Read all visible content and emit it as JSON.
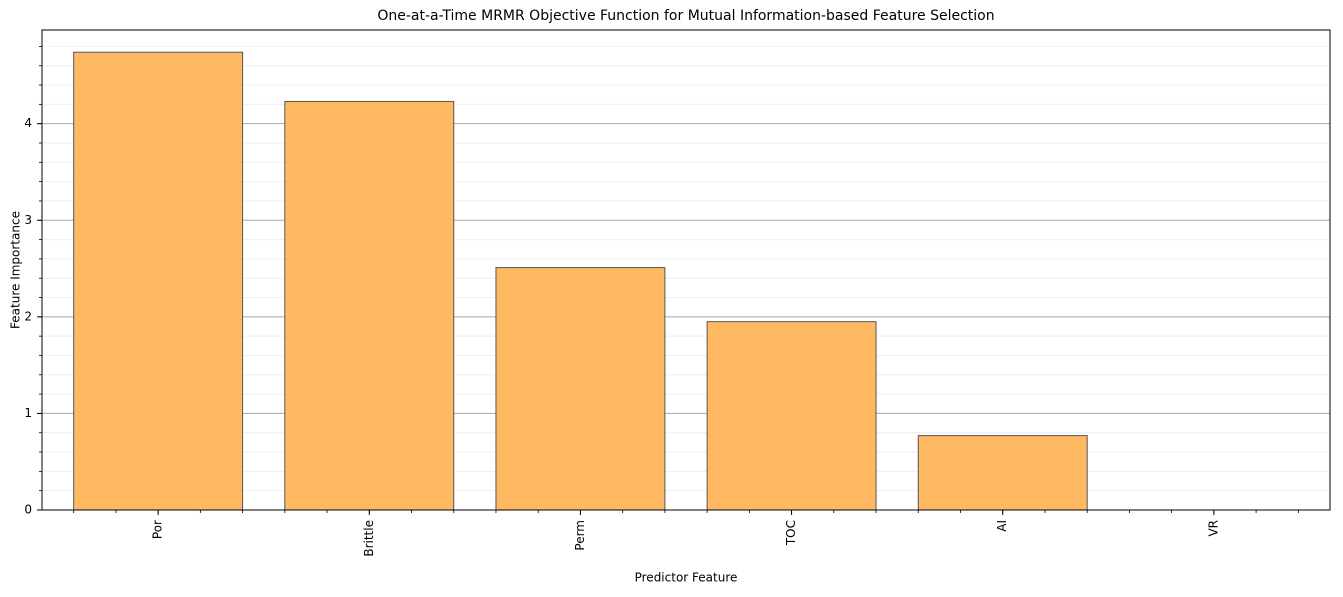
{
  "chart_data": {
    "type": "bar",
    "title": "One-at-a-Time MRMR Objective Function for Mutual Information-based Feature Selection",
    "x_label": "Predictor Feature",
    "y_label": "Feature Importance",
    "categories": [
      "Por",
      "Brittle",
      "Perm",
      "TOC",
      "AI",
      "VR"
    ],
    "values": [
      4.74,
      4.23,
      2.51,
      1.95,
      0.77,
      0.0
    ],
    "color": "#ffb963",
    "edge_color": "#555555",
    "ylim": [
      0,
      4.97
    ],
    "yticks": [
      0,
      1,
      2,
      3,
      4
    ],
    "grid": true
  }
}
